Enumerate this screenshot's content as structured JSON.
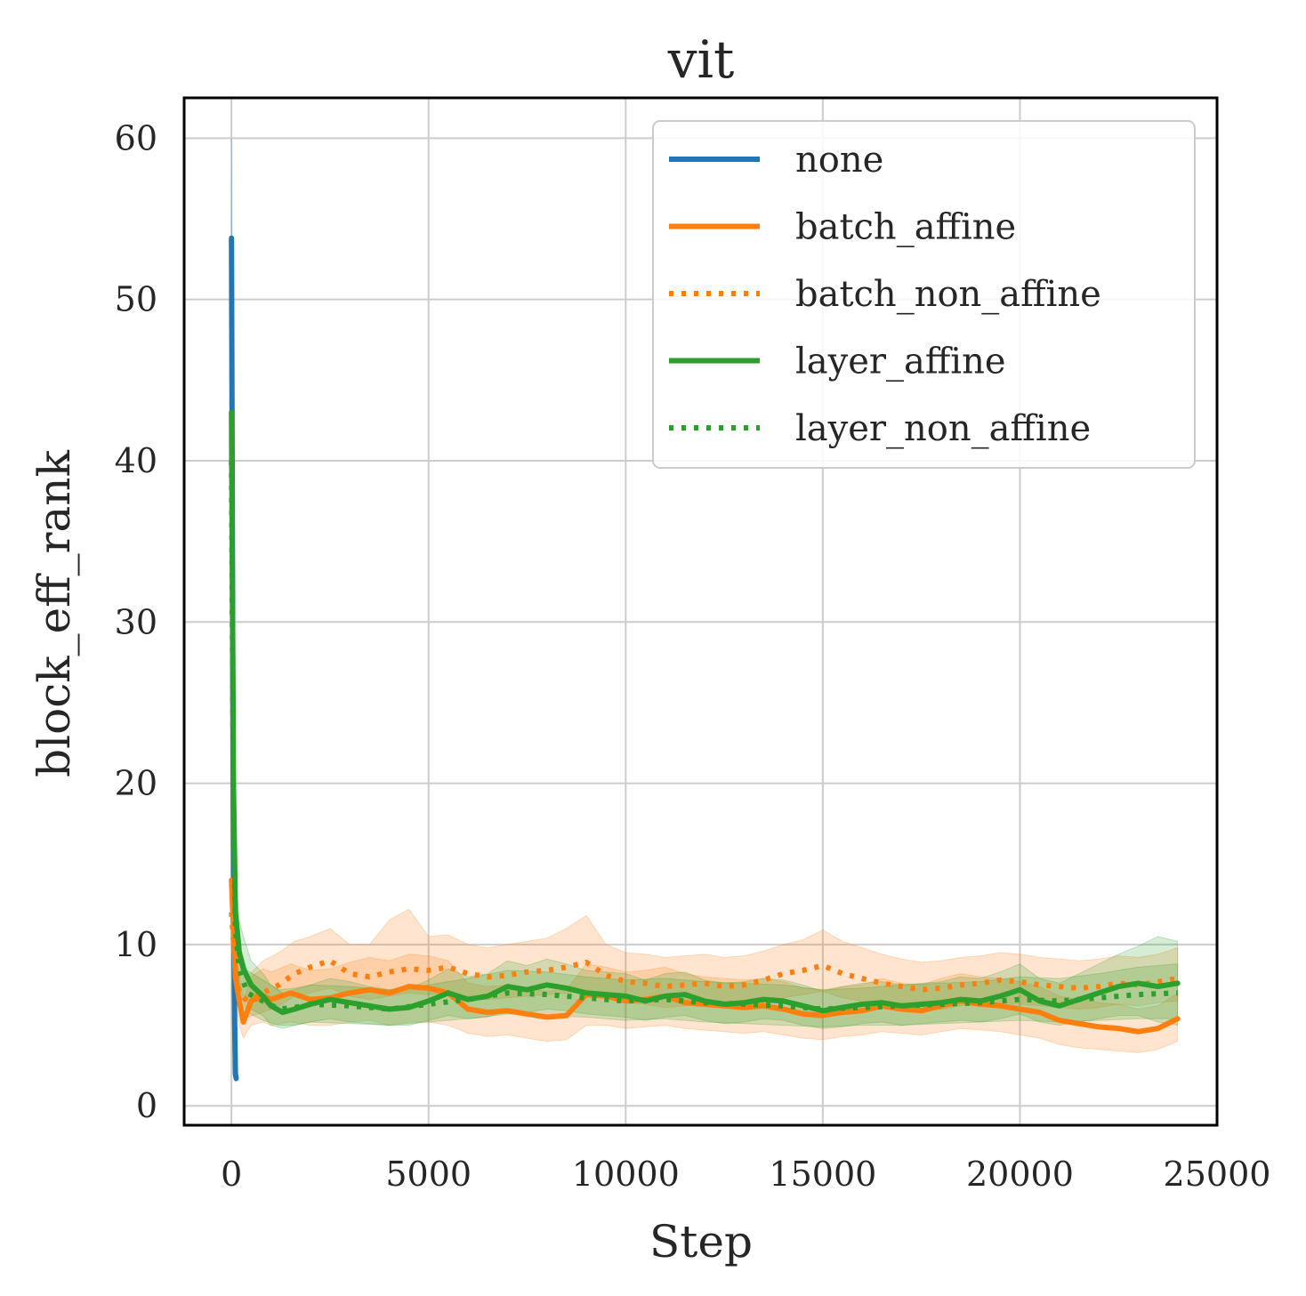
{
  "chart_data": {
    "type": "line",
    "title": "vit",
    "xlabel": "Step",
    "ylabel": "block_eff_rank",
    "xlim": [
      -1200,
      25000
    ],
    "ylim": [
      -1.2,
      62.5
    ],
    "xticks": [
      0,
      5000,
      10000,
      15000,
      20000,
      25000
    ],
    "yticks": [
      0,
      10,
      20,
      30,
      40,
      50,
      60
    ],
    "grid": true,
    "legend_position": "top-right",
    "series": [
      {
        "name": "none",
        "style": "solid",
        "color": "#1f77b4",
        "x": [
          0,
          20,
          40,
          60,
          80,
          100,
          120
        ],
        "y": [
          53.8,
          38.0,
          22.0,
          11.0,
          5.5,
          2.0,
          1.7
        ],
        "band_lower": [
          48.0,
          33.0,
          18.0,
          8.5,
          4.0,
          1.5,
          1.5
        ],
        "band_upper": [
          60.0,
          44.0,
          26.0,
          13.5,
          7.0,
          2.5,
          2.0
        ]
      },
      {
        "name": "batch_affine",
        "style": "solid",
        "color": "#ff7f0e",
        "x": [
          0,
          100,
          200,
          300,
          500,
          800,
          1000,
          1500,
          2000,
          2500,
          3000,
          3500,
          4000,
          4500,
          5000,
          5500,
          6000,
          6500,
          7000,
          7500,
          8000,
          8500,
          9000,
          9500,
          10000,
          10500,
          11000,
          11500,
          12000,
          12500,
          13000,
          13500,
          14000,
          14500,
          15000,
          15500,
          16000,
          16500,
          17000,
          17500,
          18000,
          18500,
          19000,
          19500,
          20000,
          20500,
          21000,
          21500,
          22000,
          22500,
          23000,
          23500,
          24000
        ],
        "y": [
          14.0,
          8.0,
          6.5,
          5.2,
          6.5,
          6.8,
          6.6,
          7.0,
          6.6,
          6.7,
          7.0,
          7.2,
          7.0,
          7.4,
          7.3,
          7.0,
          6.0,
          5.8,
          5.9,
          5.7,
          5.5,
          5.6,
          6.9,
          6.8,
          6.5,
          6.6,
          6.8,
          6.4,
          6.3,
          6.2,
          6.1,
          6.2,
          6.0,
          5.7,
          5.6,
          5.8,
          5.9,
          6.2,
          6.0,
          5.9,
          6.2,
          6.5,
          6.3,
          6.2,
          6.0,
          5.8,
          5.3,
          5.1,
          4.9,
          4.8,
          4.6,
          4.8,
          5.4
        ],
        "band_lower": [
          12.0,
          6.5,
          5.0,
          4.2,
          5.0,
          5.2,
          5.0,
          5.2,
          5.0,
          5.0,
          5.2,
          5.3,
          5.0,
          5.2,
          5.2,
          5.0,
          4.5,
          4.3,
          4.4,
          4.2,
          4.0,
          4.1,
          5.0,
          5.0,
          4.8,
          4.9,
          5.0,
          4.8,
          4.7,
          4.6,
          4.5,
          4.6,
          4.4,
          4.2,
          4.1,
          4.3,
          4.4,
          4.6,
          4.5,
          4.4,
          4.6,
          4.8,
          4.7,
          4.6,
          4.4,
          4.2,
          3.8,
          3.6,
          3.5,
          3.4,
          3.3,
          3.5,
          4.0
        ],
        "band_upper": [
          16.0,
          9.5,
          8.0,
          6.5,
          8.0,
          8.5,
          8.3,
          8.8,
          8.4,
          8.5,
          8.9,
          9.2,
          9.0,
          9.4,
          9.3,
          9.0,
          7.6,
          7.4,
          7.5,
          7.3,
          7.1,
          7.2,
          8.8,
          8.6,
          8.3,
          8.4,
          8.6,
          8.2,
          8.0,
          7.9,
          7.8,
          7.9,
          7.7,
          7.3,
          7.2,
          7.4,
          7.5,
          7.9,
          7.6,
          7.5,
          7.9,
          8.2,
          8.0,
          7.9,
          7.7,
          7.4,
          6.8,
          6.6,
          6.4,
          6.3,
          6.0,
          6.2,
          7.0
        ]
      },
      {
        "name": "batch_non_affine",
        "style": "dotted",
        "color": "#ff7f0e",
        "x": [
          0,
          100,
          200,
          400,
          800,
          1200,
          1600,
          2000,
          2500,
          3000,
          3500,
          4000,
          4500,
          5000,
          5500,
          6000,
          6500,
          7000,
          7500,
          8000,
          8500,
          9000,
          9500,
          10000,
          10500,
          11000,
          11500,
          12000,
          12500,
          13000,
          13500,
          14000,
          14500,
          15000,
          15500,
          16000,
          16500,
          17000,
          17500,
          18000,
          18500,
          19000,
          19500,
          20000,
          20500,
          21000,
          21500,
          22000,
          22500,
          23000,
          23500,
          24000
        ],
        "y": [
          12.0,
          8.5,
          7.0,
          6.5,
          7.0,
          7.5,
          8.2,
          8.6,
          9.0,
          8.2,
          8.0,
          8.3,
          8.5,
          8.4,
          8.6,
          8.2,
          8.0,
          8.1,
          8.3,
          8.4,
          8.6,
          8.9,
          8.1,
          7.7,
          7.6,
          7.4,
          7.5,
          7.6,
          7.4,
          7.5,
          7.8,
          8.2,
          8.4,
          8.7,
          8.2,
          7.9,
          7.6,
          7.4,
          7.2,
          7.3,
          7.5,
          7.6,
          7.8,
          7.7,
          7.5,
          7.4,
          7.3,
          7.4,
          7.6,
          7.5,
          7.7,
          7.9
        ],
        "band_lower": [
          10.0,
          7.0,
          6.0,
          5.5,
          5.8,
          6.2,
          6.8,
          7.0,
          7.3,
          6.8,
          6.6,
          6.8,
          7.0,
          6.9,
          7.0,
          6.8,
          6.6,
          6.7,
          6.8,
          6.9,
          7.0,
          7.2,
          6.7,
          6.4,
          6.3,
          6.1,
          6.2,
          6.3,
          6.1,
          6.2,
          6.4,
          6.7,
          6.9,
          7.1,
          6.7,
          6.5,
          6.3,
          6.1,
          5.9,
          6.0,
          6.2,
          6.3,
          6.4,
          6.3,
          6.2,
          6.1,
          6.0,
          6.1,
          6.3,
          6.2,
          6.4,
          6.5
        ],
        "band_upper": [
          14.0,
          10.0,
          8.5,
          8.0,
          9.0,
          9.5,
          10.2,
          10.5,
          11.0,
          10.0,
          10.0,
          11.5,
          12.2,
          10.5,
          10.6,
          10.0,
          9.8,
          10.0,
          10.2,
          10.4,
          11.0,
          11.8,
          10.0,
          9.5,
          9.4,
          9.2,
          9.3,
          9.4,
          9.2,
          9.3,
          9.6,
          10.0,
          10.3,
          10.9,
          10.2,
          9.8,
          9.4,
          9.1,
          8.9,
          9.0,
          9.2,
          9.3,
          9.5,
          9.4,
          9.2,
          9.1,
          9.0,
          9.1,
          9.3,
          9.2,
          9.4,
          9.8
        ]
      },
      {
        "name": "layer_affine",
        "style": "solid",
        "color": "#2ca02c",
        "x": [
          0,
          50,
          100,
          200,
          300,
          500,
          800,
          1000,
          1300,
          1600,
          2000,
          2500,
          3000,
          3500,
          4000,
          4500,
          5000,
          5500,
          6000,
          6500,
          7000,
          7500,
          8000,
          8500,
          9000,
          9500,
          10000,
          10500,
          11000,
          11500,
          12000,
          12500,
          13000,
          13500,
          14000,
          14500,
          15000,
          15500,
          16000,
          16500,
          17000,
          17500,
          18000,
          18500,
          19000,
          19500,
          20000,
          20500,
          21000,
          21500,
          22000,
          22500,
          23000,
          23500,
          24000
        ],
        "y": [
          43.0,
          20.0,
          12.0,
          9.5,
          8.5,
          7.5,
          6.8,
          6.2,
          5.8,
          6.0,
          6.3,
          6.6,
          6.4,
          6.2,
          6.0,
          6.1,
          6.5,
          7.0,
          6.6,
          6.8,
          7.4,
          7.2,
          7.5,
          7.3,
          7.0,
          6.9,
          6.8,
          6.5,
          6.8,
          6.9,
          6.5,
          6.3,
          6.4,
          6.6,
          6.5,
          6.2,
          5.9,
          6.1,
          6.3,
          6.4,
          6.2,
          6.3,
          6.4,
          6.6,
          6.5,
          6.8,
          7.2,
          6.5,
          6.2,
          6.6,
          7.0,
          7.4,
          7.6,
          7.4,
          7.6
        ],
        "band_lower": [
          40.0,
          17.0,
          9.5,
          7.5,
          6.8,
          6.0,
          5.6,
          5.0,
          4.8,
          5.0,
          5.2,
          5.4,
          5.2,
          5.1,
          5.0,
          5.0,
          5.3,
          5.6,
          5.4,
          5.5,
          5.9,
          5.8,
          6.0,
          5.9,
          5.7,
          5.6,
          5.5,
          5.3,
          5.5,
          5.6,
          5.3,
          5.1,
          5.2,
          5.4,
          5.3,
          5.0,
          4.8,
          4.9,
          5.1,
          5.2,
          5.0,
          5.1,
          5.2,
          5.3,
          5.2,
          5.4,
          5.7,
          5.2,
          5.0,
          5.2,
          5.4,
          5.6,
          5.6,
          5.2,
          5.0
        ],
        "band_upper": [
          46.0,
          23.0,
          14.5,
          11.5,
          10.5,
          9.0,
          8.2,
          7.5,
          7.0,
          7.2,
          7.5,
          7.9,
          7.7,
          7.4,
          7.2,
          7.3,
          7.8,
          8.5,
          8.0,
          8.2,
          9.0,
          8.7,
          9.1,
          8.8,
          8.4,
          8.3,
          8.2,
          7.8,
          8.2,
          8.3,
          7.8,
          7.6,
          7.7,
          7.9,
          7.8,
          7.5,
          7.1,
          7.4,
          7.6,
          7.7,
          7.5,
          7.6,
          7.7,
          8.0,
          7.9,
          8.3,
          8.8,
          7.9,
          7.6,
          8.2,
          8.8,
          9.4,
          9.9,
          10.5,
          10.2
        ]
      },
      {
        "name": "layer_non_affine",
        "style": "dotted",
        "color": "#2ca02c",
        "x": [
          0,
          50,
          100,
          200,
          400,
          800,
          1200,
          1600,
          2000,
          3000,
          4000,
          5000,
          6000,
          7000,
          8000,
          9000,
          10000,
          11000,
          12000,
          13000,
          14000,
          15000,
          16000,
          17000,
          18000,
          19000,
          20000,
          21000,
          22000,
          23000,
          24000
        ],
        "y": [
          40.0,
          18.0,
          11.0,
          8.5,
          7.0,
          6.5,
          6.0,
          6.1,
          6.3,
          6.2,
          6.0,
          6.3,
          6.6,
          7.0,
          6.9,
          6.7,
          6.5,
          6.6,
          6.4,
          6.3,
          6.2,
          6.0,
          6.1,
          6.2,
          6.3,
          6.4,
          6.6,
          6.5,
          6.7,
          6.9,
          7.0
        ],
        "band_lower": [
          37.0,
          15.0,
          9.0,
          7.0,
          5.8,
          5.3,
          5.0,
          5.0,
          5.2,
          5.1,
          5.0,
          5.2,
          5.4,
          5.7,
          5.6,
          5.5,
          5.3,
          5.4,
          5.2,
          5.1,
          5.0,
          4.9,
          5.0,
          5.0,
          5.1,
          5.2,
          5.3,
          5.2,
          5.3,
          5.4,
          5.4
        ],
        "band_upper": [
          43.0,
          21.0,
          13.0,
          10.0,
          8.4,
          7.8,
          7.2,
          7.3,
          7.5,
          7.4,
          7.2,
          7.5,
          7.9,
          8.4,
          8.3,
          8.0,
          7.8,
          7.9,
          7.7,
          7.6,
          7.5,
          7.2,
          7.3,
          7.5,
          7.6,
          7.7,
          8.0,
          7.9,
          8.2,
          8.6,
          8.8
        ]
      }
    ]
  }
}
